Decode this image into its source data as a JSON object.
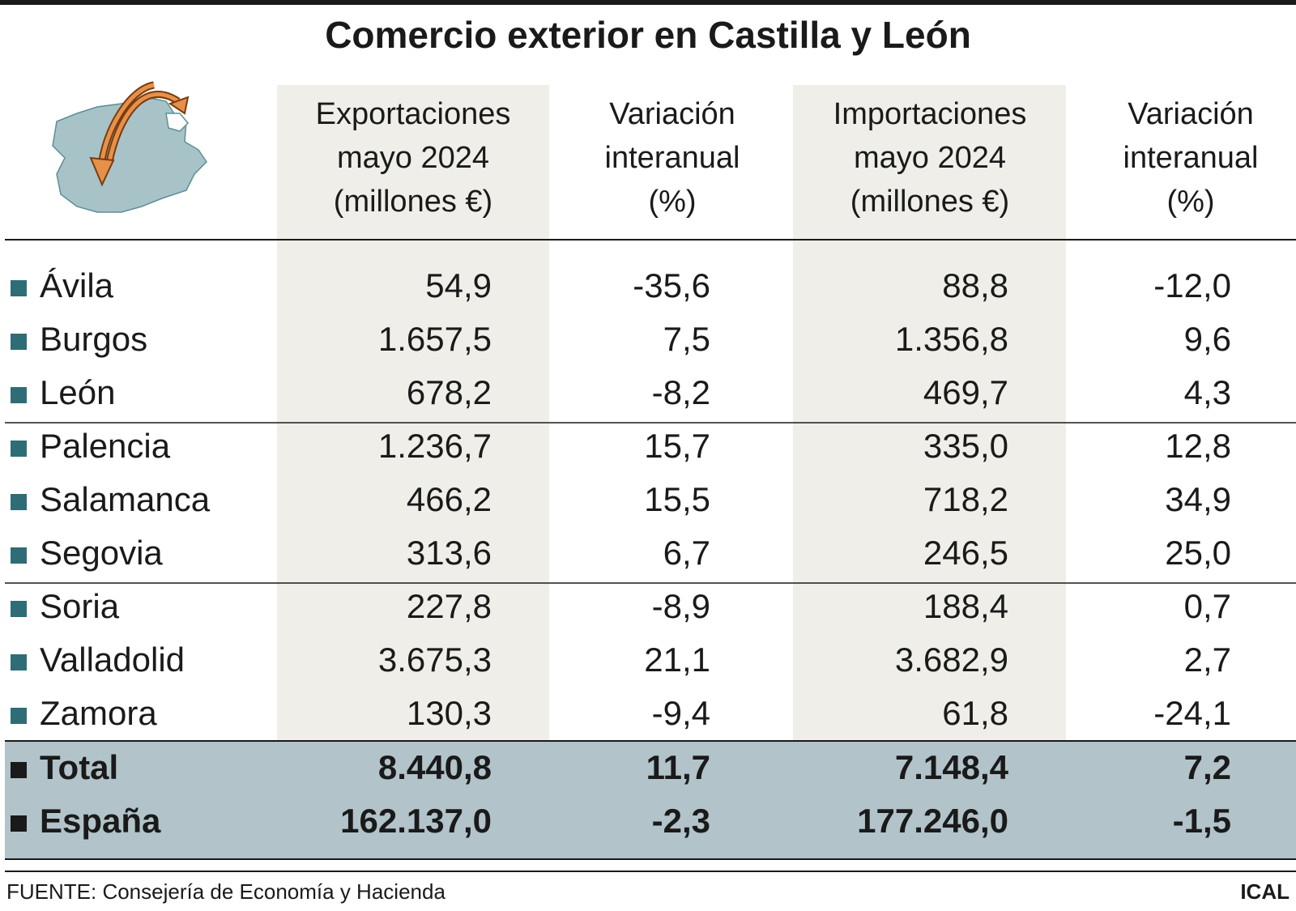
{
  "title": "Comercio exterior en Castilla y León",
  "header": {
    "columns": [
      [
        "Exportaciones",
        "mayo 2024",
        "(millones €)"
      ],
      [
        "Variación",
        "interanual",
        "(%)"
      ],
      [
        "Importaciones",
        "mayo 2024",
        "(millones €)"
      ],
      [
        "Variación",
        "interanual",
        "(%)"
      ]
    ]
  },
  "table": {
    "rows": [
      [
        "Ávila",
        "54,9",
        "-35,6",
        "88,8",
        "-12,0"
      ],
      [
        "Burgos",
        "1.657,5",
        "7,5",
        "1.356,8",
        "9,6"
      ],
      [
        "León",
        "678,2",
        "-8,2",
        "469,7",
        "4,3"
      ],
      [
        "Palencia",
        "1.236,7",
        "15,7",
        "335,0",
        "12,8"
      ],
      [
        "Salamanca",
        "466,2",
        "15,5",
        "718,2",
        "34,9"
      ],
      [
        "Segovia",
        "313,6",
        "6,7",
        "246,5",
        "25,0"
      ],
      [
        "Soria",
        "227,8",
        "-8,9",
        "188,4",
        "0,7"
      ],
      [
        "Valladolid",
        "3.675,3",
        "21,1",
        "3.682,9",
        "2,7"
      ],
      [
        "Zamora",
        "130,3",
        "-9,4",
        "61,8",
        "-24,1"
      ]
    ],
    "totals": [
      [
        "Total",
        "8.440,8",
        "11,7",
        "7.148,4",
        "7,2"
      ],
      [
        "España",
        "162.137,0",
        "-2,3",
        "177.246,0",
        "-1,5"
      ]
    ]
  },
  "footer": {
    "source": "FUENTE: Consejería de Economía y Hacienda",
    "credit": "ICAL"
  }
}
